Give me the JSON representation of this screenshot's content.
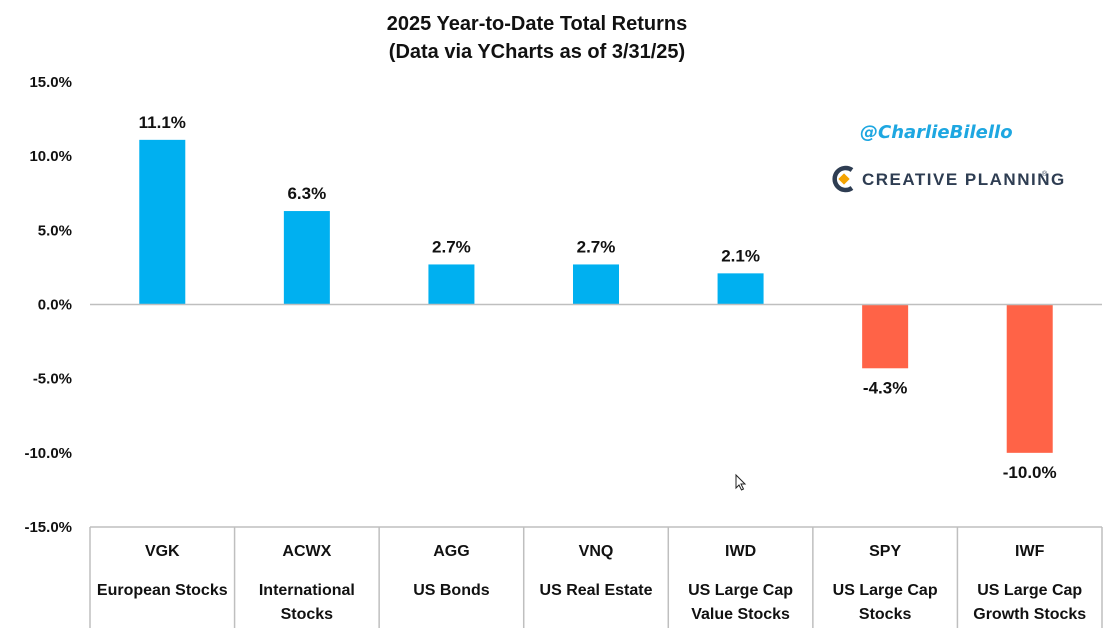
{
  "chart_data": {
    "type": "bar",
    "title": [
      "2025 Year-to-Date Total Returns",
      "(Data via YCharts as of 3/31/25)"
    ],
    "tickers": [
      "VGK",
      "ACWX",
      "AGG",
      "VNQ",
      "IWD",
      "SPY",
      "IWF"
    ],
    "descriptions": [
      [
        "European Stocks"
      ],
      [
        "International",
        "Stocks"
      ],
      [
        "US Bonds"
      ],
      [
        "US Real Estate"
      ],
      [
        "US Large Cap",
        "Value Stocks"
      ],
      [
        "US Large Cap",
        "Stocks"
      ],
      [
        "US Large Cap",
        "Growth Stocks"
      ]
    ],
    "values": [
      11.1,
      6.3,
      2.7,
      2.7,
      2.1,
      -4.3,
      -10.0
    ],
    "value_labels": [
      "11.1%",
      "6.3%",
      "2.7%",
      "2.7%",
      "2.1%",
      "-4.3%",
      "-10.0%"
    ],
    "ylim": [
      -15,
      15
    ],
    "yticks": [
      15,
      10,
      5,
      0,
      -5,
      -10,
      -15
    ],
    "ytick_labels": [
      "15.0%",
      "10.0%",
      "5.0%",
      "0.0%",
      "-5.0%",
      "-10.0%",
      "-15.0%"
    ],
    "xlabel": "",
    "ylabel": "",
    "colors": {
      "positive": "#00b0f0",
      "negative": "#ff6347",
      "axis": "#bfbfbf",
      "text": "#111111"
    }
  },
  "watermark": {
    "handle": "@CharlieBilello",
    "brand": "CREATIVE PLANNING",
    "brand_mark": "®",
    "logo_colors": {
      "dark": "#2e3d52",
      "accent": "#f4a300"
    }
  }
}
